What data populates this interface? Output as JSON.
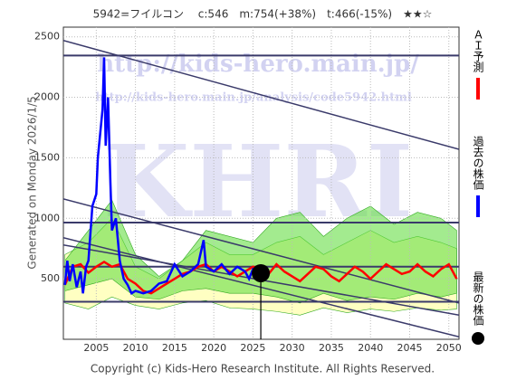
{
  "chart_data": {
    "type": "line",
    "title": "5942=フイルコン　 c:546　m:754(+38%)　t:466(-15%)　★★☆",
    "side_note": "Generated on Monday 2026/1/5.",
    "footer": "Copyright (c) Kids-Hero Research Institute. All Rights Reserved.",
    "watermark": [
      "http://kids-hero.main.jp/",
      "http://kids-hero.main.jp/analysis/code5942.html",
      "KHRI"
    ],
    "xlim": [
      2000.8,
      2051.3
    ],
    "ylim": [
      0,
      2580
    ],
    "xticks": [
      2005,
      2010,
      2015,
      2020,
      2025,
      2030,
      2035,
      2040,
      2045,
      2050
    ],
    "yticks": [
      500,
      1000,
      1500,
      2000,
      2500
    ],
    "grid": true,
    "bands": [
      {
        "color": "#ffff99",
        "x": [
          2001,
          2004,
          2007,
          2010,
          2013,
          2016,
          2019,
          2022,
          2025,
          2028,
          2031,
          2034,
          2037,
          2040,
          2043,
          2046,
          2049,
          2051
        ],
        "lower": [
          300,
          250,
          350,
          280,
          250,
          300,
          320,
          260,
          250,
          230,
          200,
          260,
          220,
          250,
          230,
          260,
          240,
          250
        ],
        "upper": [
          700,
          800,
          1000,
          600,
          500,
          650,
          800,
          700,
          700,
          800,
          850,
          700,
          800,
          900,
          800,
          850,
          800,
          750
        ]
      },
      {
        "color": "#66dd44",
        "x": [
          2001,
          2004,
          2007,
          2010,
          2013,
          2016,
          2019,
          2022,
          2025,
          2028,
          2031,
          2034,
          2037,
          2040,
          2043,
          2046,
          2049,
          2051
        ],
        "lower": [
          400,
          450,
          500,
          350,
          330,
          400,
          420,
          380,
          380,
          350,
          300,
          380,
          320,
          350,
          330,
          380,
          350,
          380
        ],
        "upper": [
          650,
          900,
          1150,
          700,
          520,
          650,
          900,
          850,
          800,
          1000,
          1050,
          850,
          1000,
          1100,
          950,
          1050,
          1000,
          900
        ]
      }
    ],
    "reference_lines": {
      "color": "#3a3a6a",
      "values": [
        2345,
        965,
        600,
        310
      ]
    },
    "trend_lines": [
      {
        "x": [
          2000.8,
          2051.3
        ],
        "values": [
          2470,
          1570
        ]
      },
      {
        "x": [
          2000.8,
          2051.3
        ],
        "values": [
          1160,
          300
        ]
      },
      {
        "x": [
          2000.8,
          2051.3
        ],
        "values": [
          840,
          20
        ]
      },
      {
        "x": [
          2000.8,
          2051.3
        ],
        "values": [
          780,
          200
        ]
      }
    ],
    "series": [
      {
        "name": "ＡＩ予測",
        "color": "#ff0000",
        "x": [
          2001,
          2002,
          2003,
          2004,
          2005,
          2006,
          2007,
          2008,
          2009,
          2010,
          2011,
          2012,
          2013,
          2014,
          2015,
          2016,
          2017,
          2018,
          2019,
          2020,
          2021,
          2022,
          2023,
          2024,
          2025,
          2026,
          2027,
          2028,
          2029,
          2030,
          2031,
          2032,
          2033,
          2034,
          2035,
          2036,
          2037,
          2038,
          2039,
          2040,
          2041,
          2042,
          2043,
          2044,
          2045,
          2046,
          2047,
          2048,
          2049,
          2050,
          2051
        ],
        "values": [
          450,
          600,
          620,
          550,
          600,
          640,
          600,
          620,
          500,
          460,
          400,
          380,
          420,
          460,
          500,
          540,
          560,
          600,
          620,
          560,
          600,
          560,
          520,
          560,
          600,
          580,
          540,
          620,
          560,
          520,
          480,
          540,
          600,
          580,
          520,
          480,
          540,
          600,
          560,
          500,
          560,
          620,
          580,
          540,
          560,
          620,
          560,
          520,
          580,
          620,
          500
        ]
      },
      {
        "name": "過去の株価",
        "color": "#0000ff",
        "x": [
          2001,
          2001.3,
          2001.6,
          2002,
          2002.5,
          2003,
          2003.3,
          2003.7,
          2004,
          2004.5,
          2005,
          2005.2,
          2005.5,
          2005.8,
          2006,
          2006.2,
          2006.5,
          2006.8,
          2007,
          2007.5,
          2008,
          2008.5,
          2009,
          2009.5,
          2010,
          2011,
          2012,
          2013,
          2014,
          2015,
          2016,
          2017,
          2018,
          2018.7,
          2019,
          2020,
          2021,
          2022,
          2023,
          2024,
          2024.5,
          2025,
          2025.5,
          2025.9
        ],
        "values": [
          450,
          650,
          480,
          620,
          430,
          560,
          380,
          600,
          650,
          1100,
          1200,
          1500,
          1700,
          1900,
          2330,
          1600,
          2000,
          1300,
          900,
          1000,
          650,
          500,
          450,
          380,
          400,
          380,
          400,
          460,
          480,
          620,
          520,
          560,
          620,
          820,
          600,
          560,
          620,
          540,
          600,
          560,
          500,
          580,
          560,
          546
        ]
      }
    ],
    "latest": {
      "name": "最新の株価",
      "x": 2026,
      "value": 546
    }
  }
}
